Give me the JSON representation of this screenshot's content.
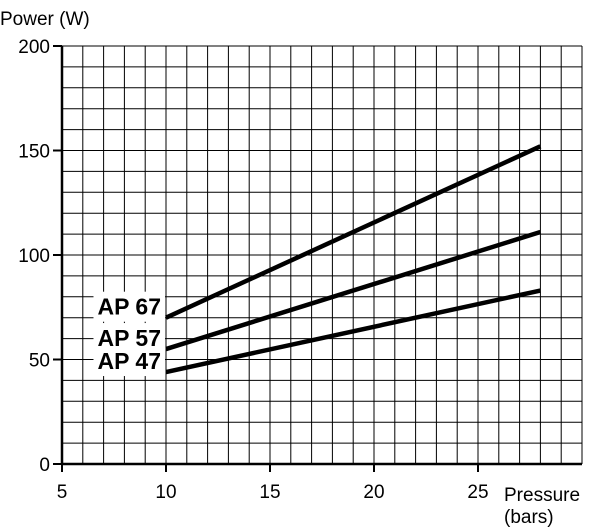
{
  "chart_data": {
    "type": "line",
    "title": "",
    "ylabel": "Power  (W)",
    "xlabel": "Pressure",
    "xlabel_unit": "(bars)",
    "xlim": [
      5,
      30
    ],
    "ylim": [
      0,
      200
    ],
    "x_ticks": [
      5,
      10,
      15,
      20,
      25
    ],
    "y_ticks": [
      0,
      50,
      100,
      150,
      200
    ],
    "grid": true,
    "grid_step_x": 1,
    "grid_step_y": 10,
    "series": [
      {
        "name": "AP 67",
        "x": [
          10,
          28
        ],
        "y": [
          70,
          152
        ]
      },
      {
        "name": "AP 57",
        "x": [
          10,
          28
        ],
        "y": [
          55,
          111
        ]
      },
      {
        "name": "AP 47",
        "x": [
          10,
          28
        ],
        "y": [
          44,
          83
        ]
      }
    ],
    "colors": {
      "line": "#000000",
      "grid": "#000000",
      "background": "#ffffff"
    }
  }
}
